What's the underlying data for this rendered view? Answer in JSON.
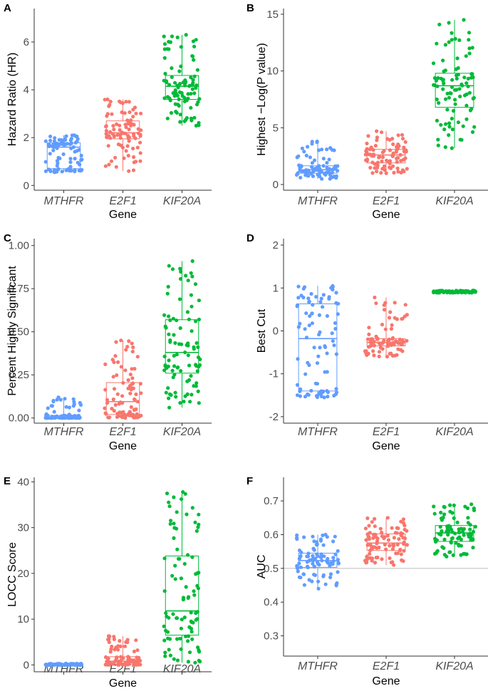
{
  "colors": {
    "MTHFR": "#619CFF",
    "E2F1": "#F8766D",
    "KIF20A": "#00BA38",
    "axis": "#333333",
    "refline": "#bdbdbd"
  },
  "chart_data": [
    {
      "panel": "A",
      "type": "box",
      "xlabel": "Gene",
      "ylabel": "Hazard Ratio (HR)",
      "categories": [
        "MTHFR",
        "E2F1",
        "KIF20A"
      ],
      "ylim": [
        -0.2,
        7.4
      ],
      "yticks": [
        "0",
        "2",
        "4",
        "6"
      ],
      "ytick_values": [
        0,
        2,
        4,
        6
      ],
      "boxes": [
        {
          "category": "MTHFR",
          "min": 0.55,
          "q1": 0.7,
          "median": 1.6,
          "q3": 1.78,
          "max": 2.1
        },
        {
          "category": "E2F1",
          "min": 0.6,
          "q1": 1.95,
          "median": 2.2,
          "q3": 2.7,
          "max": 3.6
        },
        {
          "category": "KIF20A",
          "min": 2.5,
          "q1": 3.6,
          "median": 4.15,
          "q3": 4.6,
          "max": 6.3
        }
      ]
    },
    {
      "panel": "B",
      "type": "box",
      "xlabel": "Gene",
      "ylabel": "Highest −Log(P value)",
      "categories": [
        "MTHFR",
        "E2F1",
        "KIF20A"
      ],
      "ylim": [
        -0.5,
        15.5
      ],
      "yticks": [
        "0",
        "5",
        "10",
        "15"
      ],
      "ytick_values": [
        0,
        5,
        10,
        15
      ],
      "boxes": [
        {
          "category": "MTHFR",
          "min": 0.5,
          "q1": 1.0,
          "median": 1.3,
          "q3": 1.65,
          "max": 3.8
        },
        {
          "category": "E2F1",
          "min": 1.0,
          "q1": 1.9,
          "median": 2.6,
          "q3": 3.1,
          "max": 4.7
        },
        {
          "category": "KIF20A",
          "min": 3.2,
          "q1": 6.8,
          "median": 8.7,
          "q3": 9.8,
          "max": 14.5
        }
      ]
    },
    {
      "panel": "C",
      "type": "box",
      "xlabel": "Gene",
      "ylabel": "Percent Highly Significant",
      "categories": [
        "MTHFR",
        "E2F1",
        "KIF20A"
      ],
      "ylim": [
        -0.03,
        1.04
      ],
      "yticks": [
        "0.00",
        "0.25",
        "0.50",
        "0.75",
        "1.00"
      ],
      "ytick_values": [
        0,
        0.25,
        0.5,
        0.75,
        1.0
      ],
      "boxes": [
        {
          "category": "MTHFR",
          "min": 0.0,
          "q1": 0.0,
          "median": 0.005,
          "q3": 0.015,
          "max": 0.12
        },
        {
          "category": "E2F1",
          "min": 0.0,
          "q1": 0.02,
          "median": 0.095,
          "q3": 0.205,
          "max": 0.45
        },
        {
          "category": "KIF20A",
          "min": 0.06,
          "q1": 0.26,
          "median": 0.38,
          "q3": 0.57,
          "max": 0.91
        }
      ]
    },
    {
      "panel": "D",
      "type": "box",
      "xlabel": "Gene",
      "ylabel": "Best Cut",
      "categories": [
        "MTHFR",
        "E2F1",
        "KIF20A"
      ],
      "ylim": [
        -2.15,
        2.15
      ],
      "yticks": [
        "-2",
        "-1",
        "0",
        "1",
        "2"
      ],
      "ytick_values": [
        -2,
        -1,
        0,
        1,
        2
      ],
      "boxes": [
        {
          "category": "MTHFR",
          "min": -1.55,
          "q1": -1.4,
          "median": -0.18,
          "q3": 0.63,
          "max": 1.05
        },
        {
          "category": "E2F1",
          "min": -0.6,
          "q1": -0.35,
          "median": -0.27,
          "q3": -0.18,
          "max": 0.78
        },
        {
          "category": "KIF20A",
          "min": 0.89,
          "q1": 0.905,
          "median": 0.915,
          "q3": 0.925,
          "max": 0.94
        }
      ]
    },
    {
      "panel": "E",
      "type": "box",
      "xlabel": "Gene",
      "ylabel": "LOCC Score",
      "categories": [
        "MTHFR",
        "E2F1",
        "KIF20A"
      ],
      "ylim": [
        -1.5,
        41
      ],
      "yticks": [
        "0",
        "10",
        "20",
        "30",
        "40"
      ],
      "ytick_values": [
        0,
        10,
        20,
        30,
        40
      ],
      "boxes": [
        {
          "category": "MTHFR",
          "min": 0.0,
          "q1": 0.0,
          "median": 0.05,
          "q3": 0.12,
          "max": 0.3
        },
        {
          "category": "E2F1",
          "min": 0.0,
          "q1": 0.1,
          "median": 0.8,
          "q3": 1.8,
          "max": 6.3
        },
        {
          "category": "KIF20A",
          "min": 0.5,
          "q1": 6.5,
          "median": 11.8,
          "q3": 23.8,
          "max": 37.8
        }
      ]
    },
    {
      "panel": "F",
      "type": "box",
      "xlabel": "Gene",
      "ylabel": "AUC",
      "categories": [
        "MTHFR",
        "E2F1",
        "KIF20A"
      ],
      "ylim": [
        0.24,
        0.77
      ],
      "yticks": [
        "0.3",
        "0.4",
        "0.5",
        "0.6",
        "0.7"
      ],
      "ytick_values": [
        0.3,
        0.4,
        0.5,
        0.6,
        0.7
      ],
      "reference_line": 0.5,
      "boxes": [
        {
          "category": "MTHFR",
          "min": 0.44,
          "q1": 0.503,
          "median": 0.523,
          "q3": 0.545,
          "max": 0.6
        },
        {
          "category": "E2F1",
          "min": 0.51,
          "q1": 0.553,
          "median": 0.575,
          "q3": 0.602,
          "max": 0.65
        },
        {
          "category": "KIF20A",
          "min": 0.535,
          "q1": 0.58,
          "median": 0.605,
          "q3": 0.627,
          "max": 0.69
        }
      ]
    }
  ]
}
